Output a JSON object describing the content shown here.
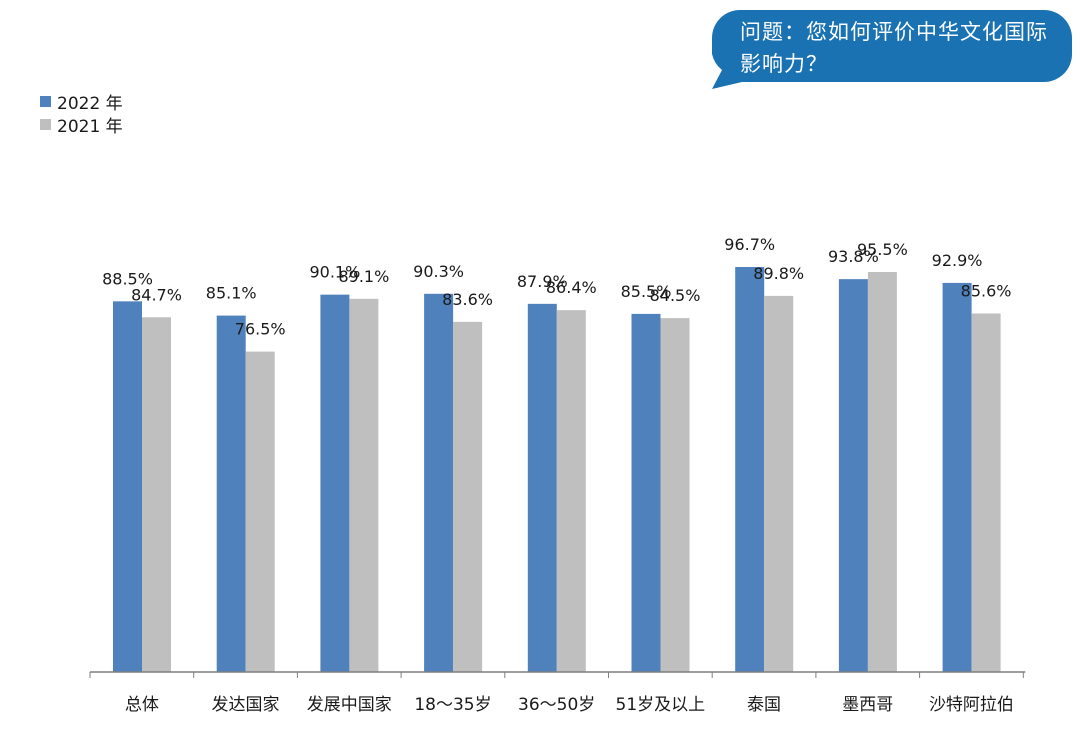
{
  "question": {
    "text": "问题：您如何评价中华文化国际影响力？",
    "color": "#1a72b3"
  },
  "chart_data": {
    "type": "bar",
    "categories": [
      "总体",
      "发达国家",
      "发展中国家",
      "18～35岁",
      "36～50岁",
      "51岁及以上",
      "泰国",
      "墨西哥",
      "沙特阿拉伯"
    ],
    "series": [
      {
        "name": "2022 年",
        "color": "#4f81bd",
        "values": [
          88.5,
          85.1,
          90.1,
          90.3,
          87.9,
          85.5,
          96.7,
          93.8,
          92.9
        ],
        "labels": [
          "88.5%",
          "85.1%",
          "90.1%",
          "90.3%",
          "87.9%",
          "85.5%",
          "96.7%",
          "93.8%",
          "92.9%"
        ]
      },
      {
        "name": "2021 年",
        "color": "#bfbfbf",
        "values": [
          84.7,
          76.5,
          89.1,
          83.6,
          86.4,
          84.5,
          89.8,
          95.5,
          85.6
        ],
        "labels": [
          "84.7%",
          "76.5%",
          "89.1%",
          "83.6%",
          "86.4%",
          "84.5%",
          "89.8%",
          "95.5%",
          "85.6%"
        ]
      }
    ],
    "ylim": [
      0,
      100
    ],
    "grid": false,
    "legend": "top-left"
  }
}
